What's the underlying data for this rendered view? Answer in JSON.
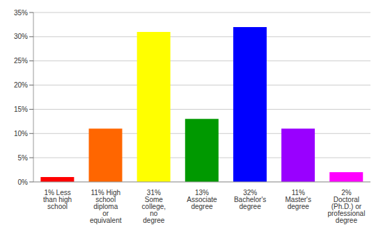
{
  "chart_data": {
    "type": "bar",
    "categories": [
      "1% Less than high school",
      "11% High school diploma or equivalent",
      "31% Some college, no degree",
      "13% Associate degree",
      "32% Bachelor's degree",
      "11% Master's degree",
      "2% Doctoral (Ph.D.) or professional degree"
    ],
    "values": [
      1,
      11,
      31,
      13,
      32,
      11,
      2
    ],
    "colors": [
      "#ff0000",
      "#ff6600",
      "#ffff00",
      "#009900",
      "#0000ff",
      "#9900ff",
      "#ff00ff"
    ],
    "ylim": [
      0,
      35
    ],
    "yticks": [
      {
        "value": 0,
        "label": "0%"
      },
      {
        "value": 5,
        "label": "5%"
      },
      {
        "value": 10,
        "label": "10%"
      },
      {
        "value": 15,
        "label": "15%"
      },
      {
        "value": 20,
        "label": "20%"
      },
      {
        "value": 25,
        "label": "25%"
      },
      {
        "value": 30,
        "label": "30%"
      },
      {
        "value": 35,
        "label": "35%"
      }
    ],
    "grid": true
  }
}
